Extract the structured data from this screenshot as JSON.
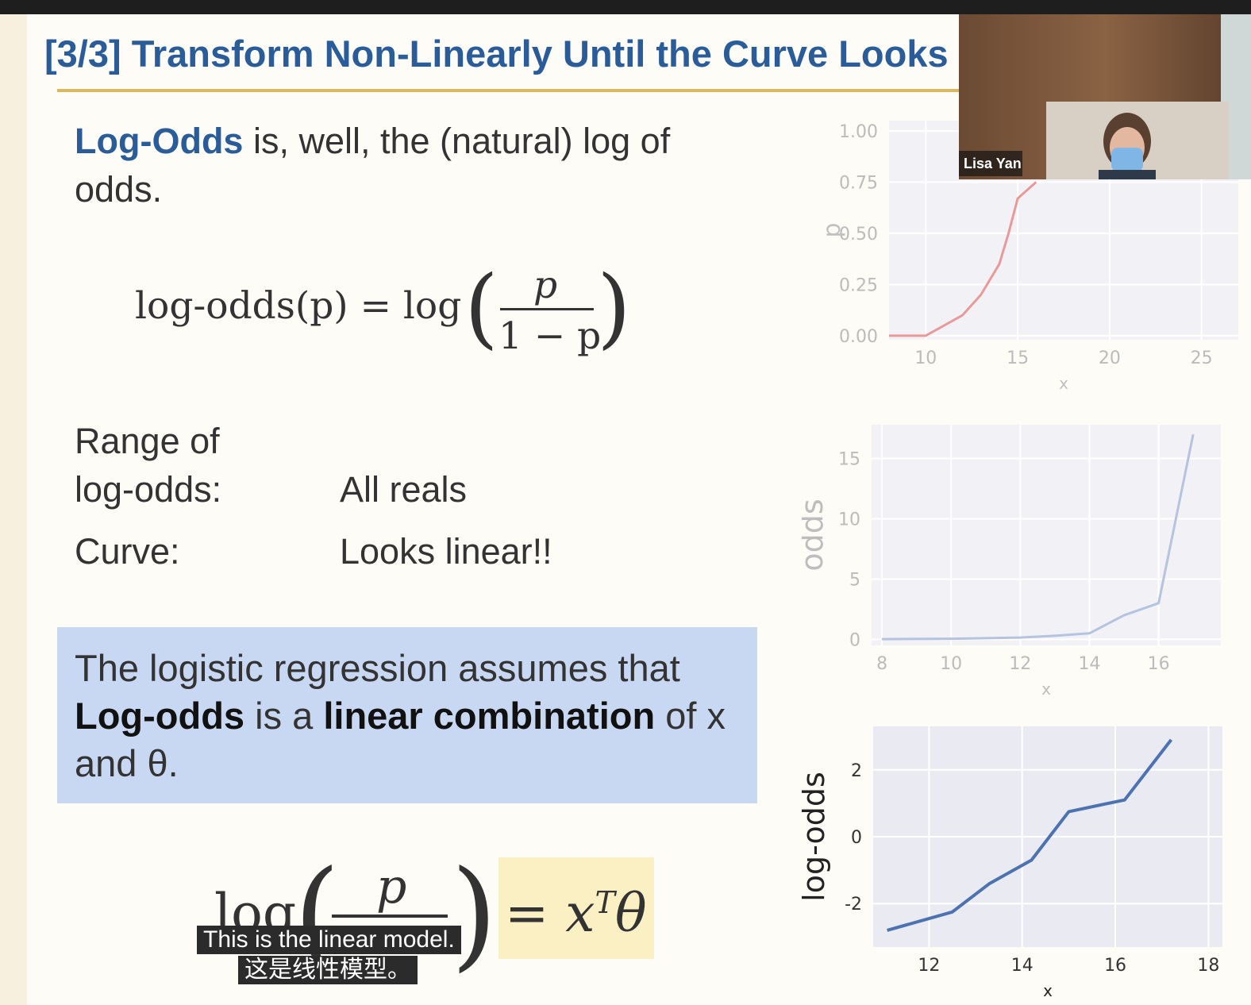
{
  "slide": {
    "title": "[3/3] Transform Non-Linearly Until the Curve Looks L",
    "def_term": "Log-Odds",
    "def_rest": " is, well, the (natural) log of",
    "def_line2": "odds.",
    "eq_lhs": "log-odds(p) = log",
    "eq_num": "p",
    "eq_den": "1 − p",
    "range_label_1": "Range of",
    "range_label_2": "log-odds:",
    "range_value": "All reals",
    "curve_label": "Curve:",
    "curve_value": "Looks linear!!",
    "callout": {
      "line1": "The logistic regression assumes that",
      "term1": "Log-odds",
      "mid": " is a ",
      "term2": "linear combination",
      "end": " of x",
      "line3": "and θ."
    },
    "bottom_eq_log": "log",
    "bottom_eq_num": "p",
    "bottom_eq_rhs": "= x",
    "bottom_eq_sup": "T",
    "bottom_eq_theta": "θ"
  },
  "webcam": {
    "name": "Lisa Yan"
  },
  "captions": {
    "en": "This is the linear model.",
    "zh": "这是线性模型。"
  },
  "colors": {
    "title": "#2a5c9a",
    "rule": "#d9b85f",
    "callout_bg": "#c8d7f2",
    "eq_box": "#fbefc4",
    "plot_bg": "#eaeaf2",
    "line_blue": "#4c72b0",
    "line_red": "#dd8452"
  },
  "chart_data": [
    {
      "type": "line",
      "xlabel": "x",
      "ylabel": "p",
      "x_ticks": [
        "10",
        "15",
        "20",
        "25"
      ],
      "y_ticks": [
        "0.00",
        "0.25",
        "0.50",
        "0.75",
        "1.00"
      ],
      "xlim": [
        8,
        27
      ],
      "ylim": [
        -0.02,
        1.05
      ],
      "series": [
        {
          "x": [
            8,
            10,
            11,
            12,
            13,
            14,
            14.5,
            15,
            16
          ],
          "y": [
            0.0,
            0.0,
            0.05,
            0.1,
            0.2,
            0.35,
            0.5,
            0.67,
            0.75
          ]
        }
      ],
      "color": "#e89a9a",
      "grid": true
    },
    {
      "type": "line",
      "xlabel": "x",
      "ylabel": "odds",
      "x_ticks": [
        "8",
        "10",
        "12",
        "14",
        "16"
      ],
      "y_ticks": [
        "0",
        "5",
        "10",
        "15"
      ],
      "xlim": [
        7.7,
        17.8
      ],
      "ylim": [
        -0.5,
        17.8
      ],
      "series": [
        {
          "x": [
            8,
            10,
            12,
            13,
            14,
            15,
            16,
            17
          ],
          "y": [
            0.02,
            0.05,
            0.15,
            0.3,
            0.5,
            2.0,
            3.0,
            17.0
          ]
        }
      ],
      "color": "#b4c3e0",
      "grid": true
    },
    {
      "type": "line",
      "xlabel": "x",
      "ylabel": "log-odds",
      "x_ticks": [
        "12",
        "14",
        "16",
        "18"
      ],
      "y_ticks": [
        "-2",
        "0",
        "2"
      ],
      "xlim": [
        10.8,
        18.3
      ],
      "ylim": [
        -3.3,
        3.3
      ],
      "series": [
        {
          "x": [
            11.1,
            12.5,
            13.3,
            14.2,
            15.0,
            16.2,
            17.2
          ],
          "y": [
            -2.8,
            -2.25,
            -1.4,
            -0.7,
            0.75,
            1.1,
            2.9
          ]
        }
      ],
      "color": "#4c72b0",
      "grid": true
    }
  ]
}
